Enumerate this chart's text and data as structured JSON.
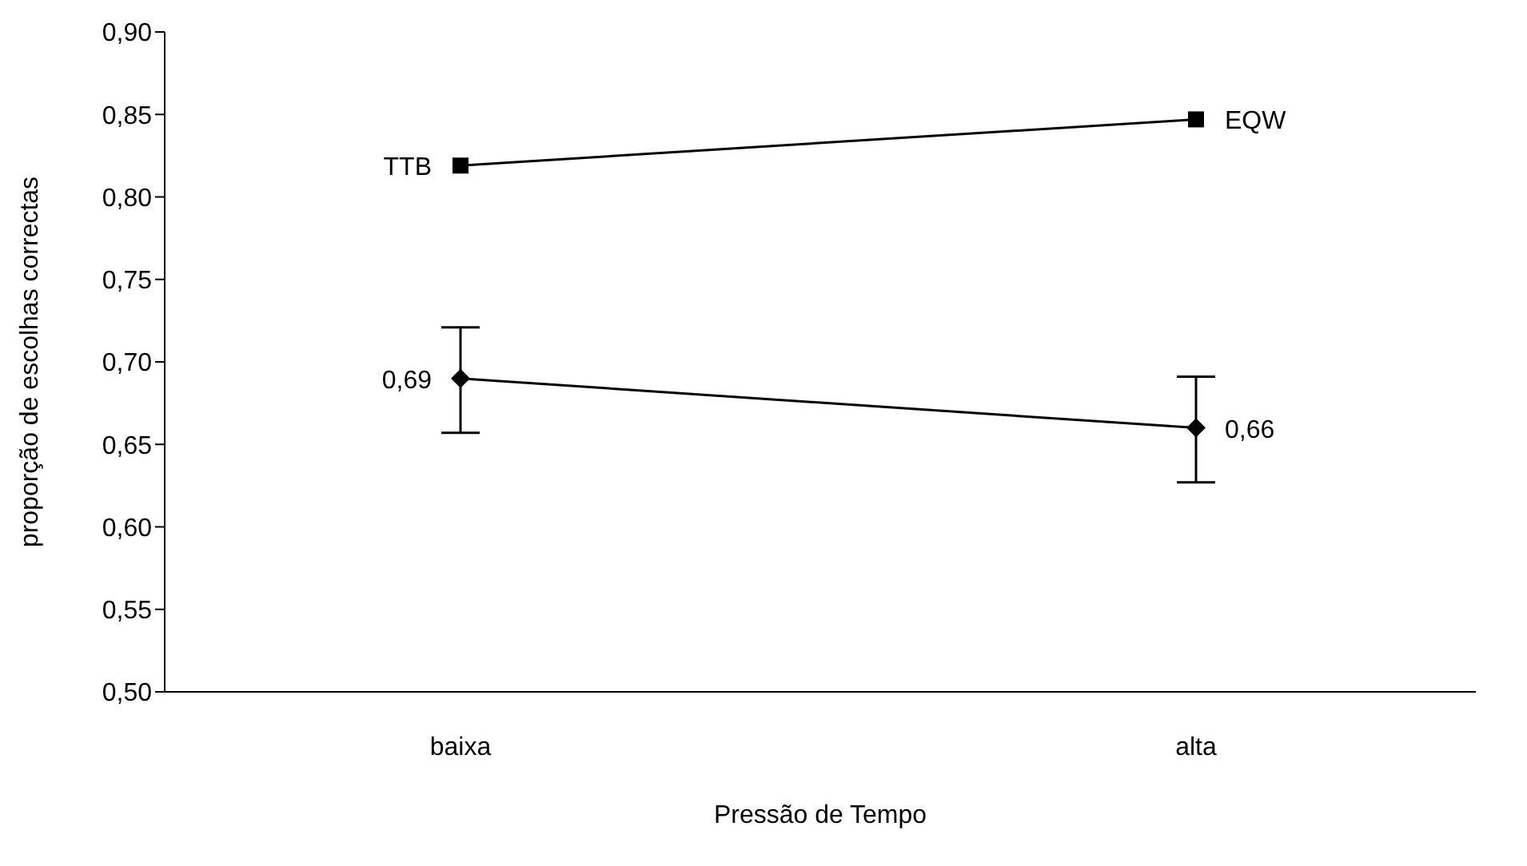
{
  "chart_data": {
    "type": "line",
    "xlabel": "Pressão de Tempo",
    "ylabel": "proporção de escolhas correctas",
    "categories": [
      "baixa",
      "alta"
    ],
    "series": [
      {
        "color": "#000000",
        "marker": "square",
        "values": [
          0.819,
          0.847
        ]
      },
      {
        "color": "#000000",
        "marker": "diamond",
        "values": [
          0.69,
          0.66
        ],
        "value_labels": [
          "0,69",
          "0,66"
        ],
        "errors": [
          [
            0.657,
            0.721
          ],
          [
            0.627,
            0.691
          ]
        ]
      }
    ],
    "annotations": [
      {
        "text": "TTB",
        "x": "baixa",
        "y": 0.819
      },
      {
        "text": "EQW",
        "x": "alta",
        "y": 0.847
      }
    ],
    "ylim": [
      0.5,
      0.9
    ],
    "yticks": [
      {
        "value": 0.5,
        "label": "0,50"
      },
      {
        "value": 0.55,
        "label": "0,55"
      },
      {
        "value": 0.6,
        "label": "0,60"
      },
      {
        "value": 0.65,
        "label": "0,65"
      },
      {
        "value": 0.7,
        "label": "0,70"
      },
      {
        "value": 0.75,
        "label": "0,75"
      },
      {
        "value": 0.8,
        "label": "0,80"
      },
      {
        "value": 0.85,
        "label": "0,85"
      },
      {
        "value": 0.9,
        "label": "0,90"
      }
    ],
    "grid": false,
    "legend": false,
    "line_style": "solid"
  }
}
